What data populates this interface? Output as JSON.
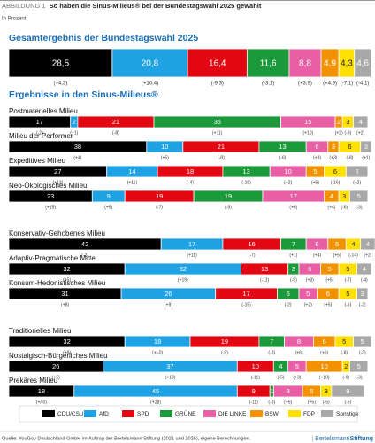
{
  "header": {
    "label": "ABBILDUNG 1",
    "title": "So haben die Sinus-Milieus® bei der Bundestagswahl 2025 gewählt",
    "subtitle": "In Prozent"
  },
  "chart_data": [
    {
      "type": "stacked-bar",
      "title": "Gesamtergebnis der Bundestagswahl 2025",
      "xlim": [
        0,
        100
      ],
      "values": [
        28.5,
        20.8,
        16.4,
        11.6,
        8.8,
        4.9,
        4.3,
        4.6
      ],
      "value_labels": [
        "28,5",
        "20,8",
        "16,4",
        "11,6",
        "8,8",
        "4,9",
        "4,3",
        "4,6"
      ],
      "change_labels": [
        "(+4,3)",
        "(+10,4)",
        "(-9,3)",
        "(-3,1)",
        "(+3,9)",
        "(+4,9)",
        "(-7,1)",
        "(-4,1)"
      ],
      "colors": [
        "#000000",
        "#1fa2e3",
        "#e30613",
        "#1a9a3a",
        "#e85fa6",
        "#f39200",
        "#ffe000",
        "#a8a8a8"
      ],
      "text_colors": [
        "#ffffff",
        "#ffffff",
        "#ffffff",
        "#ffffff",
        "#ffffff",
        "#ffffff",
        "#222222",
        "#ffffff"
      ]
    },
    {
      "type": "stacked-bar",
      "title": "Ergebnisse in den Sinus-Milieus®",
      "xlim": [
        0,
        100
      ],
      "categories": [
        "Postmaterielles Milieu",
        "Milieu der Performer",
        "Expeditives Milieu",
        "Neo-Ökologisches Milieu",
        "Konservativ-Gehobenes Milieu",
        "Adaptiv-Pragmatische Mitte",
        "Konsum-Hedonistisches Milieu",
        "Traditionelles Milieu",
        "Nostalgisch-Bürgerliches Milieu",
        "Prekäres Milieu"
      ],
      "series": [
        {
          "name": "CDU/CSU",
          "color": "#000000",
          "text_color": "#ffffff",
          "values": [
            17,
            38,
            27,
            23,
            42,
            32,
            31,
            32,
            26,
            18
          ],
          "change_labels": [
            "(-2)",
            "(+4)",
            "(+13)",
            "(+15)",
            "(-2)",
            "(+5)",
            "(+8)",
            "(+8)",
            "(+5)",
            "(+/-0)"
          ]
        },
        {
          "name": "AfD",
          "color": "#1fa2e3",
          "text_color": "#ffffff",
          "values": [
            2,
            10,
            14,
            9,
            17,
            32,
            26,
            18,
            37,
            45
          ],
          "change_labels": [
            "(+1)",
            "(+5)",
            "(+11)",
            "(+5)",
            "(+11)",
            "(+19)",
            "(+9)",
            "(+/-0)",
            "(+18)",
            "(+28)"
          ]
        },
        {
          "name": "SPD",
          "color": "#e30613",
          "text_color": "#ffffff",
          "values": [
            21,
            21,
            18,
            19,
            16,
            13,
            17,
            19,
            10,
            9
          ],
          "change_labels": [
            "(-8)",
            "(-8)",
            "(-4)",
            "(-7)",
            "(-7)",
            "(-11)",
            "(-15)",
            "(-9)",
            "(-11)",
            "(-11)"
          ]
        },
        {
          "name": "GRÜNE",
          "color": "#1a9a3a",
          "text_color": "#ffffff",
          "values": [
            35,
            13,
            13,
            19,
            7,
            3,
            6,
            7,
            4,
            1
          ],
          "change_labels": [
            "(+11)",
            "(-6)",
            "(-16)",
            "(-9)",
            "(+1)",
            "(-9)",
            "(-2)",
            "(-3)",
            "(-5)",
            "(-3)"
          ]
        },
        {
          "name": "DIE LINKE",
          "color": "#e85fa6",
          "text_color": "#ffffff",
          "values": [
            15,
            6,
            10,
            17,
            6,
            6,
            5,
            8,
            5,
            8
          ],
          "change_labels": [
            "(+10)",
            "(+3)",
            "(+2)",
            "(+6)",
            "(+4)",
            "(+3)",
            "(+2)",
            "(+6)",
            "(+3)",
            "(+5)"
          ]
        },
        {
          "name": "BSW",
          "color": "#f39200",
          "text_color": "#ffffff",
          "values": [
            2,
            3,
            5,
            4,
            5,
            5,
            6,
            6,
            10,
            5
          ],
          "change_labels": [
            "(+2)",
            "(+3)",
            "(+5)",
            "(+4)",
            "(+5)",
            "(+5)",
            "(+5)",
            "(+6)",
            "(+10)",
            "(+5)"
          ]
        },
        {
          "name": "FDP",
          "color": "#ffe000",
          "text_color": "#222222",
          "values": [
            3,
            6,
            6,
            3,
            4,
            5,
            5,
            5,
            2,
            3
          ],
          "change_labels": [
            "(-8)",
            "(-8)",
            "(-16)",
            "(-6)",
            "(-14)",
            "(-7)",
            "(-6)",
            "(-8)",
            "(-9)",
            "(-5)"
          ]
        },
        {
          "name": "Sonstige",
          "color": "#a8a8a8",
          "text_color": "#ffffff",
          "values": [
            4,
            3,
            6,
            5,
            4,
            4,
            3,
            5,
            5,
            9
          ],
          "change_labels": [
            "(+2)",
            "(+1)",
            "(+2)",
            "(-3)",
            "(+2)",
            "(-4)",
            "(-2)",
            "(-3)",
            "(-3)",
            "(-5)"
          ]
        }
      ]
    }
  ],
  "footer": {
    "source": "Quelle: YouGov Deutschland GmbH im Auftrag der Bertelsmann Stiftung (2021 und 2025), eigene Berechnungen.",
    "brand": "Bertelsmann",
    "brand_bold": "Stiftung"
  }
}
